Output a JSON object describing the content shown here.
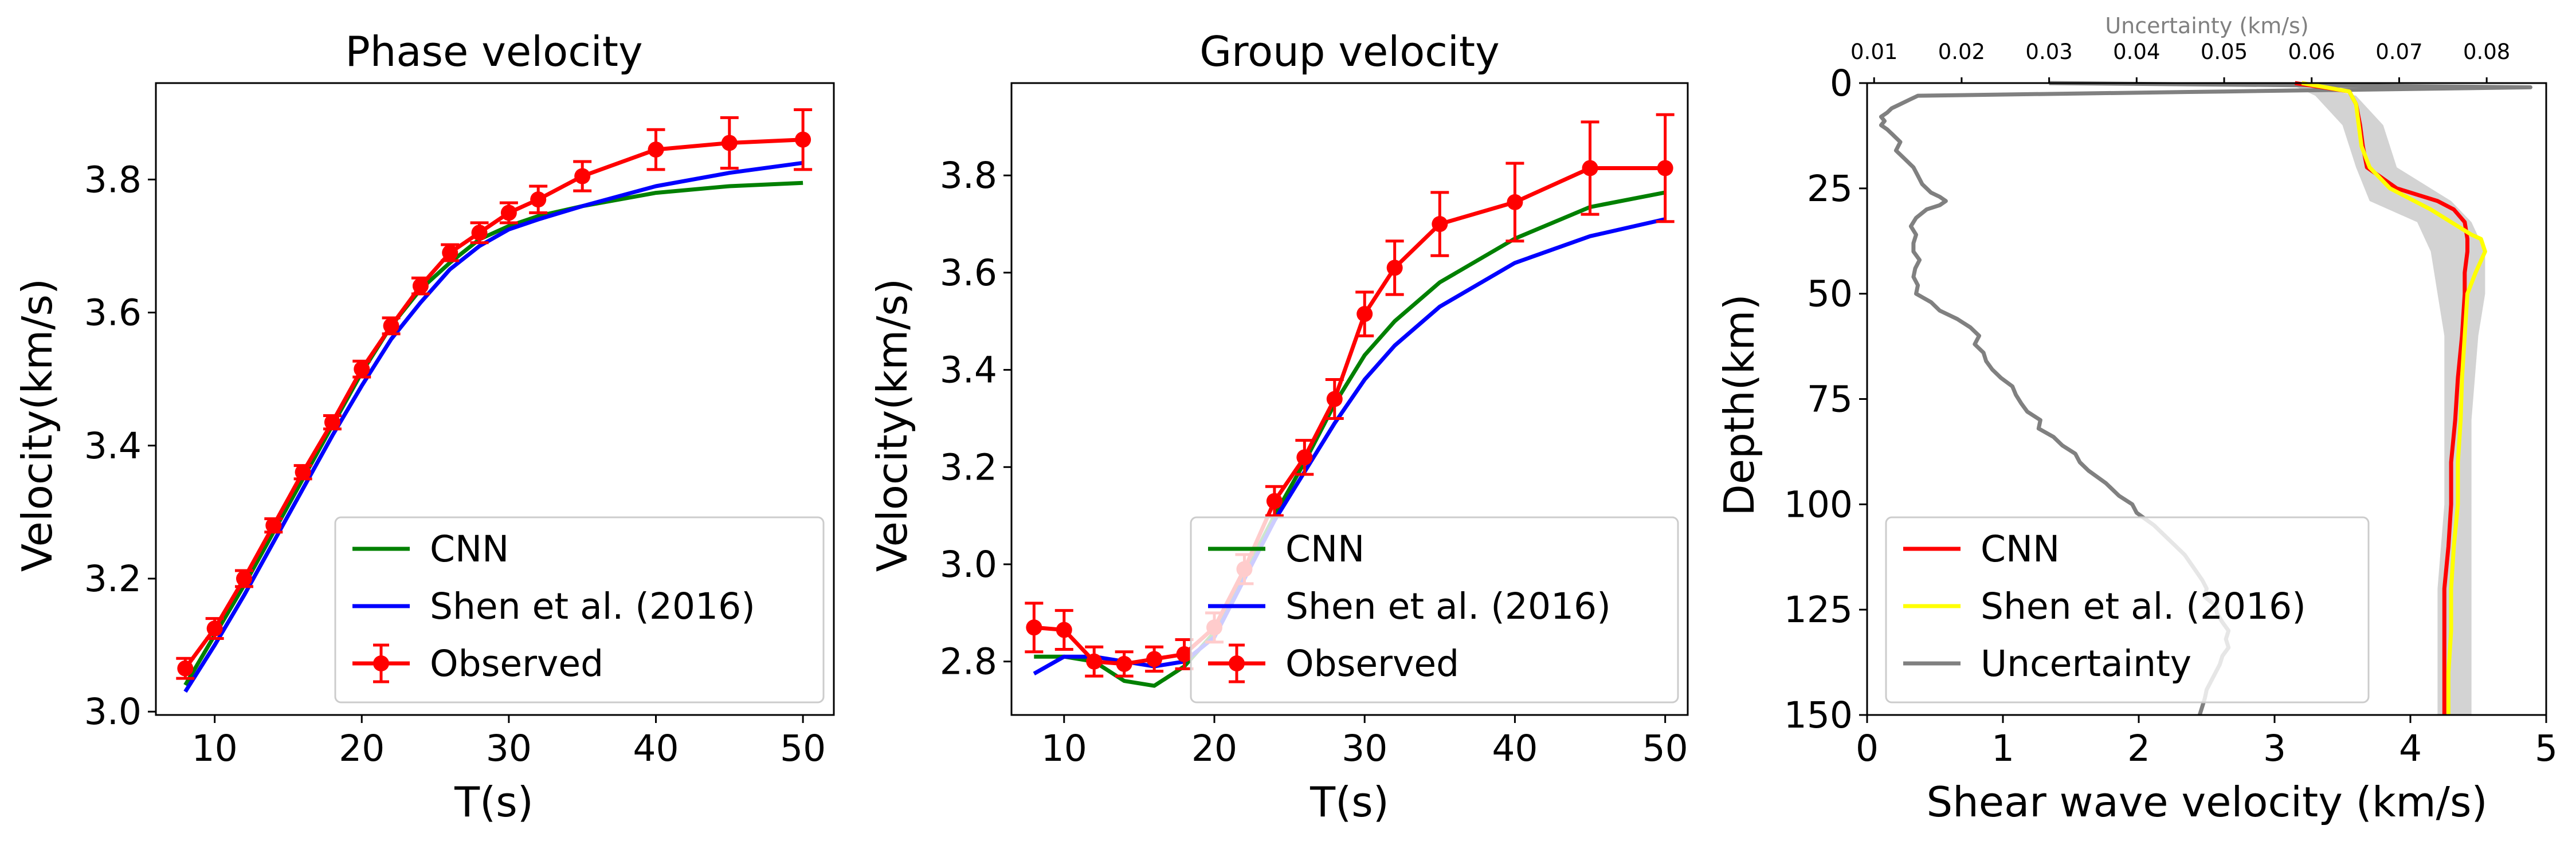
{
  "colors": {
    "cnn": "#008000",
    "shen_phase_group": "#0000ff",
    "observed": "#ff0000",
    "cnn_vs": "#ff0000",
    "shen_vs": "#ffff00",
    "uncertainty": "#808080",
    "band": "#d3d3d3"
  },
  "chart_data": [
    {
      "type": "line",
      "title": "Phase velocity",
      "xlabel": "T(s)",
      "ylabel": "Velocity(km/s)",
      "xlim": [
        6,
        52.1
      ],
      "ylim": [
        2.995,
        3.945
      ],
      "xticks": [
        10,
        20,
        30,
        40,
        50
      ],
      "yticks": [
        3.0,
        3.2,
        3.4,
        3.6,
        3.8
      ],
      "ytick_labels": [
        "3.0",
        "3.2",
        "3.4",
        "3.6",
        "3.8"
      ],
      "legend": {
        "position": "lower-right",
        "labels": [
          "CNN",
          "Shen et al. (2016)",
          "Observed"
        ]
      },
      "series": [
        {
          "name": "CNN",
          "x": [
            8,
            10,
            12,
            14,
            16,
            18,
            20,
            22,
            24,
            26,
            28,
            30,
            32,
            35,
            40,
            45,
            50
          ],
          "y": [
            3.04,
            3.115,
            3.19,
            3.27,
            3.35,
            3.43,
            3.51,
            3.58,
            3.635,
            3.675,
            3.71,
            3.73,
            3.745,
            3.76,
            3.78,
            3.79,
            3.795
          ]
        },
        {
          "name": "Shen et al. (2016)",
          "x": [
            8,
            10,
            12,
            14,
            16,
            18,
            20,
            22,
            24,
            26,
            28,
            30,
            32,
            35,
            40,
            45,
            50
          ],
          "y": [
            3.03,
            3.1,
            3.175,
            3.255,
            3.335,
            3.415,
            3.49,
            3.56,
            3.615,
            3.665,
            3.7,
            3.725,
            3.74,
            3.76,
            3.79,
            3.81,
            3.825
          ]
        },
        {
          "name": "Observed",
          "x": [
            8,
            10,
            12,
            14,
            16,
            18,
            20,
            22,
            24,
            26,
            28,
            30,
            32,
            35,
            40,
            45,
            50
          ],
          "y": [
            3.065,
            3.125,
            3.2,
            3.28,
            3.36,
            3.435,
            3.515,
            3.58,
            3.64,
            3.69,
            3.72,
            3.75,
            3.77,
            3.805,
            3.845,
            3.855,
            3.86
          ],
          "err": [
            0.015,
            0.015,
            0.012,
            0.01,
            0.01,
            0.01,
            0.012,
            0.012,
            0.012,
            0.012,
            0.015,
            0.015,
            0.02,
            0.022,
            0.03,
            0.038,
            0.045
          ]
        }
      ]
    },
    {
      "type": "line",
      "title": "Group velocity",
      "xlabel": "T(s)",
      "ylabel": "Velocity(km/s)",
      "xlim": [
        6.5,
        51.5
      ],
      "ylim": [
        2.69,
        3.99
      ],
      "xticks": [
        10,
        20,
        30,
        40,
        50
      ],
      "yticks": [
        2.8,
        3.0,
        3.2,
        3.4,
        3.6,
        3.8
      ],
      "ytick_labels": [
        "2.8",
        "3.0",
        "3.2",
        "3.4",
        "3.6",
        "3.8"
      ],
      "legend": {
        "position": "lower-right",
        "labels": [
          "CNN",
          "Shen et al. (2016)",
          "Observed"
        ]
      },
      "series": [
        {
          "name": "CNN",
          "x": [
            8,
            10,
            12,
            14,
            16,
            18,
            20,
            22,
            24,
            26,
            28,
            30,
            32,
            35,
            40,
            45,
            50
          ],
          "y": [
            2.81,
            2.81,
            2.8,
            2.76,
            2.75,
            2.79,
            2.86,
            2.98,
            3.1,
            3.21,
            3.33,
            3.43,
            3.5,
            3.58,
            3.67,
            3.735,
            3.765
          ]
        },
        {
          "name": "Shen et al. (2016)",
          "x": [
            8,
            10,
            12,
            14,
            16,
            18,
            20,
            22,
            24,
            26,
            28,
            30,
            32,
            35,
            40,
            45,
            50
          ],
          "y": [
            2.775,
            2.81,
            2.81,
            2.8,
            2.79,
            2.8,
            2.85,
            2.97,
            3.09,
            3.19,
            3.29,
            3.38,
            3.45,
            3.53,
            3.62,
            3.675,
            3.71
          ]
        },
        {
          "name": "Observed",
          "x": [
            8,
            10,
            12,
            14,
            16,
            18,
            20,
            22,
            24,
            26,
            28,
            30,
            32,
            35,
            40,
            45,
            50
          ],
          "y": [
            2.87,
            2.865,
            2.8,
            2.795,
            2.805,
            2.815,
            2.87,
            2.99,
            3.13,
            3.22,
            3.34,
            3.515,
            3.61,
            3.7,
            3.745,
            3.815,
            3.815
          ],
          "err": [
            0.05,
            0.04,
            0.03,
            0.025,
            0.025,
            0.03,
            0.03,
            0.03,
            0.03,
            0.035,
            0.04,
            0.045,
            0.055,
            0.065,
            0.08,
            0.095,
            0.11
          ]
        }
      ]
    },
    {
      "type": "line",
      "xlabel": "Shear wave velocity (km/s)",
      "ylabel": "Depth(km)",
      "x2label": "Uncertainty (km/s)",
      "xlim": [
        0,
        5
      ],
      "ylim": [
        150,
        0
      ],
      "x2lim": [
        0.0092,
        0.0868
      ],
      "xticks": [
        0,
        1,
        2,
        3,
        4,
        5
      ],
      "yticks": [
        0,
        25,
        50,
        75,
        100,
        125,
        150
      ],
      "x2ticks": [
        0.01,
        0.02,
        0.03,
        0.04,
        0.05,
        0.06,
        0.07,
        0.08
      ],
      "x2tick_labels": [
        "0.01",
        "0.02",
        "0.03",
        "0.04",
        "0.05",
        "0.06",
        "0.07",
        "0.08"
      ],
      "legend": {
        "position": "lower-left",
        "labels": [
          "CNN",
          "Shen et al. (2016)",
          "Uncertainty"
        ]
      },
      "band": {
        "depth": [
          0,
          3,
          10,
          20,
          28,
          33,
          40,
          50,
          60,
          80,
          100,
          120,
          140,
          150
        ],
        "lower": [
          3.1,
          3.3,
          3.5,
          3.6,
          3.7,
          4.05,
          4.15,
          4.2,
          4.25,
          4.25,
          4.25,
          4.2,
          4.2,
          4.2
        ],
        "upper": [
          3.2,
          3.6,
          3.8,
          3.9,
          4.3,
          4.45,
          4.55,
          4.55,
          4.5,
          4.45,
          4.45,
          4.45,
          4.45,
          4.45
        ]
      },
      "series": [
        {
          "name": "CNN",
          "depth": [
            0,
            2,
            5,
            10,
            15,
            20,
            25,
            28,
            30,
            33,
            37,
            40,
            45,
            50,
            60,
            70,
            80,
            90,
            100,
            110,
            120,
            130,
            140,
            150
          ],
          "vs": [
            3.15,
            3.55,
            3.6,
            3.63,
            3.65,
            3.68,
            3.9,
            4.2,
            4.32,
            4.4,
            4.42,
            4.42,
            4.4,
            4.4,
            4.38,
            4.35,
            4.33,
            4.3,
            4.3,
            4.28,
            4.25,
            4.25,
            4.25,
            4.25
          ]
        },
        {
          "name": "Shen et al. (2016)",
          "depth": [
            0,
            2,
            5,
            10,
            15,
            20,
            25,
            30,
            33,
            35,
            36,
            37,
            40,
            45,
            50,
            60,
            70,
            80,
            90,
            100,
            110,
            120,
            130,
            140,
            150
          ],
          "vs": [
            3.2,
            3.55,
            3.6,
            3.62,
            3.64,
            3.7,
            3.85,
            4.15,
            4.3,
            4.4,
            4.45,
            4.52,
            4.55,
            4.48,
            4.42,
            4.4,
            4.38,
            4.37,
            4.35,
            4.35,
            4.32,
            4.3,
            4.3,
            4.28,
            4.28
          ]
        },
        {
          "name": "Uncertainty",
          "depth": [
            0,
            1,
            2,
            3,
            4,
            5,
            6,
            7,
            8,
            9,
            10,
            11,
            12,
            14,
            16,
            18,
            20,
            22,
            24,
            26,
            27,
            28,
            29,
            30,
            32,
            34,
            36,
            38,
            40,
            42,
            44,
            46,
            48,
            50,
            52,
            54,
            56,
            58,
            60,
            62,
            64,
            66,
            68,
            70,
            72,
            74,
            76,
            78,
            80,
            82,
            84,
            86,
            88,
            90,
            92,
            95,
            98,
            100,
            102,
            105,
            108,
            110,
            112,
            115,
            118,
            120,
            122,
            124,
            126,
            128,
            130,
            132,
            134,
            136,
            138,
            140,
            142,
            144,
            146,
            148,
            150
          ],
          "sigma": [
            0.03,
            0.085,
            0.05,
            0.015,
            0.014,
            0.013,
            0.012,
            0.0115,
            0.0108,
            0.0112,
            0.0108,
            0.0115,
            0.012,
            0.013,
            0.0125,
            0.0135,
            0.0145,
            0.015,
            0.0155,
            0.0165,
            0.0175,
            0.0182,
            0.0175,
            0.016,
            0.0148,
            0.0142,
            0.0148,
            0.0145,
            0.0145,
            0.0152,
            0.0147,
            0.0145,
            0.015,
            0.0148,
            0.0165,
            0.0175,
            0.0195,
            0.021,
            0.022,
            0.0215,
            0.0225,
            0.0228,
            0.0235,
            0.0245,
            0.0258,
            0.0262,
            0.0268,
            0.0275,
            0.029,
            0.0288,
            0.0305,
            0.0315,
            0.033,
            0.0335,
            0.0345,
            0.0365,
            0.038,
            0.0395,
            0.04,
            0.042,
            0.0435,
            0.0445,
            0.0455,
            0.0465,
            0.0475,
            0.048,
            0.0478,
            0.049,
            0.0492,
            0.0498,
            0.0505,
            0.0502,
            0.0505,
            0.0498,
            0.0495,
            0.049,
            0.0485,
            0.048,
            0.0478,
            0.0475,
            0.0472
          ]
        }
      ]
    }
  ]
}
